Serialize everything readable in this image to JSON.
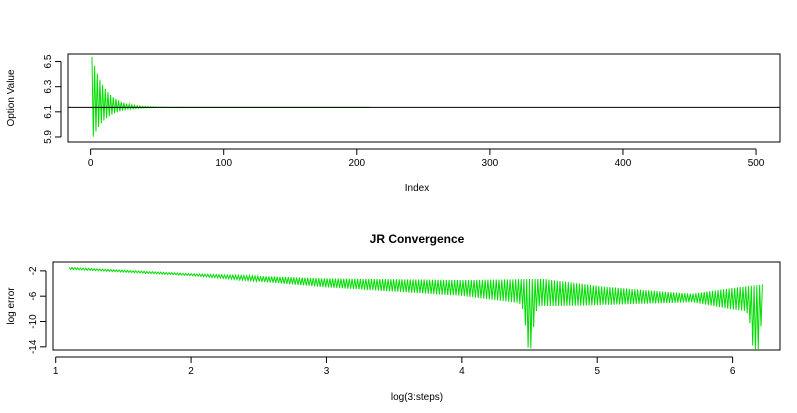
{
  "chart_data": [
    {
      "type": "line",
      "title": "",
      "xlabel": "Index",
      "ylabel": "Option Value",
      "xlim": [
        -17,
        518
      ],
      "ylim": [
        5.86,
        6.56
      ],
      "xticks": [
        0,
        100,
        200,
        300,
        400,
        500
      ],
      "yticks": [
        5.9,
        6.1,
        6.3,
        6.5
      ],
      "grid": false,
      "reference_line": {
        "y": 6.135,
        "color": "#000000"
      },
      "series": [
        {
          "color": "#00dd00",
          "pattern": "alternating oscillation converging to the reference value",
          "x_range": [
            1,
            210
          ],
          "center": 6.135,
          "amplitude_upper_start": 0.4,
          "amplitude_lower_start": -0.26,
          "decay_index_scale": 10
        }
      ]
    },
    {
      "type": "line",
      "title": "JR Convergence",
      "xlabel": "log(3:steps)",
      "ylabel": "log error",
      "xlim": [
        0.98,
        6.35
      ],
      "ylim": [
        -14.5,
        -0.6
      ],
      "xticks": [
        1,
        2,
        3,
        4,
        5,
        6
      ],
      "yticks": [
        -2,
        -6,
        -10,
        -14
      ],
      "grid": false,
      "series": [
        {
          "color": "#00dd00",
          "pattern": "oscillating log error trending downward with sharp dips",
          "trend": [
            [
              1.1,
              -1.6
            ],
            [
              2.0,
              -2.6
            ],
            [
              3.0,
              -3.9
            ],
            [
              4.0,
              -4.7
            ],
            [
              4.5,
              -5.3
            ],
            [
              5.0,
              -5.9
            ],
            [
              5.5,
              -6.2
            ],
            [
              6.0,
              -6.4
            ],
            [
              6.2,
              -6.4
            ]
          ],
          "dips": [
            [
              4.5,
              -12.8
            ],
            [
              6.17,
              -14.2
            ]
          ],
          "x_range": [
            1.1,
            6.22
          ]
        }
      ]
    }
  ]
}
